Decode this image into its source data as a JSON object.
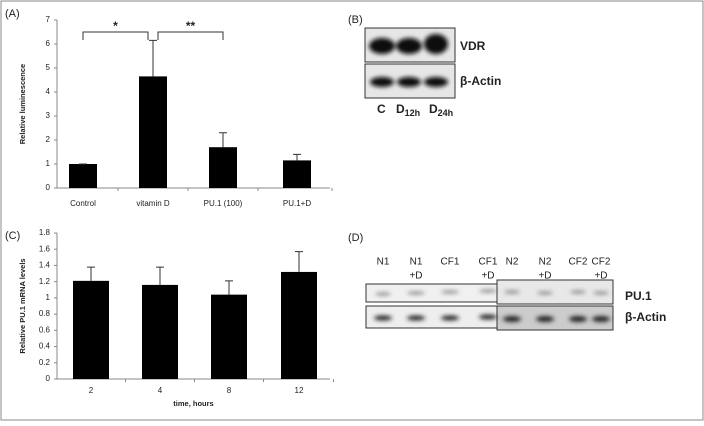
{
  "chart_data": [
    {
      "type": "bar",
      "panel": "(A)",
      "y_label": "Relative luminescence",
      "categories": [
        "Control",
        "vitamin D",
        "PU.1 (100)",
        "PU.1+D"
      ],
      "values": [
        1,
        4.65,
        1.7,
        1.15
      ],
      "errors": [
        0,
        1.5,
        0.6,
        0.25
      ],
      "color": "#000000",
      "ylim": [
        0,
        7
      ],
      "yticks": [
        0,
        1,
        2,
        3,
        4,
        5,
        6,
        7
      ],
      "annotations": [
        "*",
        "**"
      ]
    },
    {
      "type": "bar",
      "panel": "(C)",
      "y_label": "Relative PU.1 mRNA levels",
      "x_label": "time, hours",
      "categories": [
        "2",
        "4",
        "8",
        "12"
      ],
      "values": [
        1.21,
        1.16,
        1.04,
        1.32
      ],
      "errors": [
        0.17,
        0.22,
        0.17,
        0.25
      ],
      "color": "#000000",
      "ylim": [
        0,
        1.8
      ],
      "yticks": [
        0,
        0.2,
        0.4,
        0.6,
        0.8,
        1,
        1.2,
        1.4,
        1.6,
        1.8
      ]
    }
  ],
  "blot_b": {
    "panel": "(B)",
    "rows": [
      "VDR",
      "β-Actin"
    ],
    "lanes": [
      {
        "main": "C"
      },
      {
        "main": "D",
        "sub": "12h"
      },
      {
        "main": "D",
        "sub": "24h"
      }
    ]
  },
  "blot_d": {
    "panel": "(D)",
    "rows": [
      "PU.1",
      "β-Actin"
    ],
    "lanes": [
      [
        "N1"
      ],
      [
        "N1",
        "+D"
      ],
      [
        "CF1"
      ],
      [
        "CF1",
        "+D"
      ],
      [
        "N2"
      ],
      [
        "N2",
        "+D"
      ],
      [
        "CF2"
      ],
      [
        "CF2",
        "+D"
      ]
    ]
  }
}
